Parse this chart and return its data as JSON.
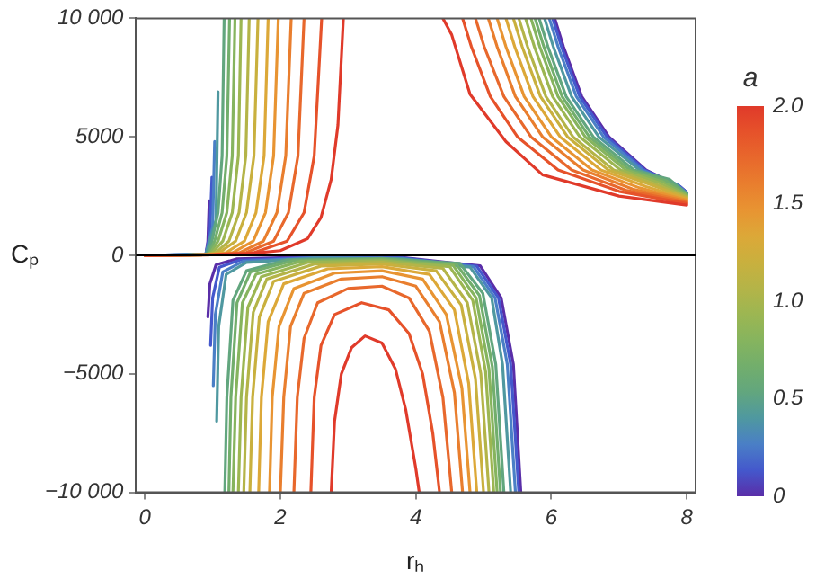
{
  "chart_data": {
    "type": "line",
    "xlabel": "rₕ",
    "ylabel": "Cₚ",
    "clabel": "a",
    "clim": [
      0,
      2
    ],
    "cticks": [
      0,
      {
        "value": 0.5,
        "label": "0.5"
      },
      {
        "value": 1,
        "label": "1.0"
      },
      {
        "value": 1.5,
        "label": "1.5"
      },
      {
        "value": 2,
        "label": "2.0"
      }
    ],
    "xlim": [
      -0.13,
      8.13
    ],
    "xticks": [
      0,
      2,
      4,
      6,
      8
    ],
    "ylim": [
      -10000,
      10000
    ],
    "yticks": [
      {
        "value": -10000,
        "label": "−10 000"
      },
      {
        "value": -5000,
        "label": "−5000"
      },
      0,
      5000,
      {
        "value": 10000,
        "label": "10 000"
      }
    ],
    "ref_lines": [
      {
        "axis": "y",
        "value": 0,
        "color": "#000000"
      }
    ],
    "series": [
      {
        "color": "#e03a2a",
        "x": [
          0,
          1,
          1.5,
          2,
          2.4,
          2.6,
          2.75,
          2.85,
          2.93,
          null,
          2.75,
          2.8,
          2.9,
          3.05,
          3.25,
          3.5,
          3.7,
          3.85,
          4.0,
          4.05,
          null,
          4.4,
          4.53,
          4.8,
          5.33,
          5.87,
          7,
          8
        ],
        "values": [
          0,
          20,
          60,
          200,
          700,
          1600,
          3200,
          5500,
          10000,
          null,
          -10000,
          -7000,
          -5000,
          -3900,
          -3400,
          -3700,
          -4800,
          -6500,
          -9000,
          -10000,
          null,
          10000,
          9300,
          6800,
          4800,
          3400,
          2500,
          2120
        ]
      },
      {
        "color": "#e6522a",
        "x": [
          0,
          1,
          1.6,
          2.1,
          2.35,
          2.5,
          2.61,
          null,
          2.45,
          2.5,
          2.6,
          2.8,
          3.2,
          3.6,
          3.9,
          4.1,
          4.25,
          4.35,
          null,
          4.69,
          4.82,
          5.1,
          5.5,
          6.1,
          7,
          8
        ],
        "values": [
          0,
          20,
          100,
          600,
          1800,
          4200,
          10000,
          null,
          -10000,
          -6000,
          -3800,
          -2500,
          -2000,
          -2300,
          -3300,
          -5000,
          -7500,
          -10000,
          null,
          10000,
          8800,
          6700,
          5000,
          3600,
          2700,
          2180
        ]
      },
      {
        "color": "#e8682c",
        "x": [
          0,
          1,
          1.5,
          1.9,
          2.12,
          2.26,
          2.35,
          null,
          2.2,
          2.25,
          2.35,
          2.55,
          3.0,
          3.5,
          3.9,
          4.2,
          4.4,
          4.53,
          null,
          4.88,
          5.01,
          5.3,
          5.7,
          6.3,
          7.1,
          8
        ],
        "values": [
          0,
          20,
          120,
          600,
          1800,
          4200,
          10000,
          null,
          -10000,
          -6000,
          -3500,
          -2000,
          -1400,
          -1300,
          -1800,
          -3200,
          -6000,
          -10000,
          null,
          10000,
          8800,
          6700,
          5000,
          3600,
          2750,
          2230
        ]
      },
      {
        "color": "#e97e2e",
        "x": [
          0,
          1,
          1.4,
          1.75,
          1.95,
          2.08,
          2.16,
          null,
          2.0,
          2.05,
          2.15,
          2.35,
          2.9,
          3.5,
          4.0,
          4.35,
          4.57,
          4.69,
          null,
          5.07,
          5.2,
          5.47,
          5.87,
          6.47,
          7.2,
          8
        ],
        "values": [
          0,
          20,
          120,
          600,
          1800,
          4200,
          10000,
          null,
          -10000,
          -6000,
          -3000,
          -1600,
          -1000,
          -900,
          -1300,
          -2800,
          -5800,
          -10000,
          null,
          10000,
          8800,
          6700,
          5000,
          3600,
          2800,
          2280
        ]
      },
      {
        "color": "#e89432",
        "x": [
          0,
          1,
          1.3,
          1.6,
          1.78,
          1.9,
          1.97,
          null,
          1.84,
          1.88,
          1.98,
          2.2,
          2.8,
          3.5,
          4.1,
          4.45,
          4.68,
          4.8,
          null,
          5.2,
          5.33,
          5.6,
          6.0,
          6.6,
          7.3,
          8
        ],
        "values": [
          0,
          20,
          120,
          600,
          1800,
          4200,
          10000,
          null,
          -10000,
          -6000,
          -3000,
          -1400,
          -750,
          -650,
          -1000,
          -2500,
          -5600,
          -10000,
          null,
          10000,
          8800,
          6700,
          5000,
          3600,
          2850,
          2330
        ]
      },
      {
        "color": "#dca838",
        "x": [
          0,
          0.9,
          1.2,
          1.47,
          1.64,
          1.76,
          1.82,
          null,
          1.68,
          1.72,
          1.82,
          2.05,
          2.7,
          3.5,
          4.2,
          4.57,
          4.78,
          4.9,
          null,
          5.33,
          5.46,
          5.73,
          6.13,
          6.73,
          7.4,
          8
        ],
        "values": [
          0,
          20,
          120,
          600,
          1800,
          4200,
          10000,
          null,
          -10000,
          -6000,
          -2800,
          -1200,
          -570,
          -480,
          -800,
          -2300,
          -5400,
          -10000,
          null,
          10000,
          8800,
          6700,
          5000,
          3600,
          2900,
          2380
        ]
      },
      {
        "color": "#c9b03e",
        "x": [
          0,
          0.9,
          1.1,
          1.34,
          1.5,
          1.61,
          1.67,
          null,
          1.55,
          1.59,
          1.69,
          1.9,
          2.6,
          3.5,
          4.3,
          4.67,
          4.88,
          5.0,
          null,
          5.44,
          5.57,
          5.84,
          6.24,
          6.84,
          7.5,
          8
        ],
        "values": [
          0,
          20,
          120,
          600,
          1800,
          4200,
          10000,
          null,
          -10000,
          -6000,
          -2600,
          -1100,
          -450,
          -370,
          -650,
          -2100,
          -5200,
          -10000,
          null,
          10000,
          8800,
          6700,
          5000,
          3600,
          2950,
          2420
        ]
      },
      {
        "color": "#b4b448",
        "x": [
          0,
          0.9,
          1.05,
          1.24,
          1.39,
          1.49,
          1.54,
          null,
          1.46,
          1.5,
          1.6,
          1.8,
          2.5,
          3.5,
          4.4,
          4.76,
          4.96,
          5.08,
          null,
          5.52,
          5.65,
          5.92,
          6.32,
          6.92,
          7.55,
          8
        ],
        "values": [
          0,
          20,
          120,
          600,
          1800,
          4200,
          10000,
          null,
          -10000,
          -6000,
          -2400,
          -1000,
          -370,
          -290,
          -550,
          -2000,
          -5000,
          -10000,
          null,
          10000,
          8800,
          6700,
          5000,
          3600,
          3000,
          2460
        ]
      },
      {
        "color": "#9cb652",
        "x": [
          0,
          0.9,
          1.0,
          1.15,
          1.29,
          1.38,
          1.42,
          null,
          1.38,
          1.42,
          1.52,
          1.72,
          2.4,
          3.5,
          4.5,
          4.84,
          5.03,
          5.15,
          null,
          5.62,
          5.75,
          6.02,
          6.42,
          7.02,
          7.6,
          8
        ],
        "values": [
          0,
          20,
          120,
          600,
          1800,
          4200,
          10000,
          null,
          -10000,
          -6000,
          -2200,
          -900,
          -300,
          -230,
          -480,
          -1900,
          -4900,
          -10000,
          null,
          10000,
          8800,
          6700,
          5000,
          3600,
          3050,
          2500
        ]
      },
      {
        "color": "#86b45e",
        "x": [
          0,
          0.9,
          0.97,
          1.08,
          1.21,
          1.29,
          1.33,
          null,
          1.3,
          1.34,
          1.44,
          1.64,
          2.3,
          3.5,
          4.55,
          4.89,
          5.08,
          5.2,
          null,
          5.7,
          5.83,
          6.1,
          6.5,
          7.1,
          7.65,
          8
        ],
        "values": [
          0,
          20,
          120,
          600,
          1800,
          4200,
          10000,
          null,
          -10000,
          -6000,
          -2000,
          -800,
          -250,
          -190,
          -420,
          -1800,
          -4800,
          -10000,
          null,
          10000,
          8800,
          6700,
          5000,
          3600,
          3100,
          2540
        ]
      },
      {
        "color": "#72ae6c",
        "x": [
          0,
          0.9,
          0.95,
          1.03,
          1.14,
          1.21,
          1.25,
          null,
          1.24,
          1.27,
          1.36,
          1.56,
          2.2,
          3.5,
          4.6,
          4.94,
          5.13,
          5.25,
          null,
          5.76,
          5.89,
          6.16,
          6.56,
          7.16,
          7.7,
          8
        ],
        "values": [
          0,
          20,
          120,
          600,
          1800,
          4200,
          10000,
          null,
          -10000,
          -6000,
          -2000,
          -700,
          -220,
          -160,
          -380,
          -1700,
          -4700,
          -10000,
          null,
          10000,
          8800,
          6700,
          5000,
          3600,
          3150,
          2570
        ]
      },
      {
        "color": "#62a67e",
        "x": [
          0,
          0.9,
          0.93,
          0.99,
          1.08,
          1.14,
          1.17,
          null,
          1.18,
          1.21,
          1.3,
          1.5,
          2.1,
          3.5,
          4.65,
          4.99,
          5.18,
          5.3,
          null,
          5.82,
          5.95,
          6.22,
          6.62,
          7.22,
          7.75,
          8
        ],
        "values": [
          0,
          20,
          120,
          600,
          1800,
          4200,
          10000,
          null,
          -10000,
          -6000,
          -1900,
          -650,
          -190,
          -130,
          -340,
          -1600,
          -4600,
          -10000,
          null,
          10000,
          8800,
          6700,
          5000,
          3600,
          3200,
          2600
        ]
      },
      {
        "color": "#4f98a0",
        "x": [
          0,
          0.9,
          1.05,
          1.08,
          null,
          1.06,
          1.09,
          1.2,
          1.5,
          2.5,
          3.8,
          4.8,
          5.12,
          5.28,
          5.4,
          null,
          5.9,
          6.03,
          6.3,
          6.7,
          7.3,
          7.8,
          8
        ],
        "values": [
          0,
          50,
          1500,
          6900,
          null,
          -7000,
          -3000,
          -800,
          -300,
          -120,
          -150,
          -500,
          -1800,
          -4600,
          -10000,
          null,
          10000,
          8800,
          6700,
          5000,
          3600,
          3000,
          2620
        ]
      },
      {
        "color": "#4a7fc6",
        "x": [
          0,
          0.9,
          1.0,
          1.03,
          null,
          1.01,
          1.04,
          1.15,
          1.45,
          2.5,
          3.8,
          4.85,
          5.17,
          5.35,
          5.47,
          null,
          5.97,
          6.1,
          6.37,
          6.77,
          7.35,
          7.85,
          8
        ],
        "values": [
          0,
          50,
          1200,
          4800,
          null,
          -5500,
          -2500,
          -700,
          -250,
          -100,
          -130,
          -480,
          -1800,
          -4600,
          -10000,
          null,
          10000,
          8800,
          6700,
          5000,
          3600,
          3000,
          2640
        ]
      },
      {
        "color": "#4458cc",
        "x": [
          0,
          0.9,
          0.96,
          0.99,
          null,
          0.97,
          1.0,
          1.1,
          1.4,
          2.5,
          3.8,
          4.9,
          5.22,
          5.4,
          5.52,
          null,
          6.02,
          6.15,
          6.42,
          6.82,
          7.38,
          7.88,
          8
        ],
        "values": [
          0,
          50,
          900,
          3300,
          null,
          -3800,
          -1800,
          -500,
          -200,
          -80,
          -110,
          -460,
          -1800,
          -4600,
          -10000,
          null,
          10000,
          8800,
          6700,
          5000,
          3600,
          2950,
          2650
        ]
      },
      {
        "color": "#5a2ea8",
        "x": [
          0,
          0.9,
          0.93,
          0.95,
          null,
          0.93,
          0.96,
          1.05,
          1.35,
          2.5,
          3.8,
          4.95,
          5.26,
          5.44,
          5.55,
          null,
          6.05,
          6.18,
          6.45,
          6.85,
          7.4,
          7.9,
          8
        ],
        "values": [
          0,
          40,
          600,
          2300,
          null,
          -2600,
          -1200,
          -400,
          -150,
          -60,
          -90,
          -440,
          -1800,
          -4600,
          -10000,
          null,
          10000,
          8800,
          6700,
          5000,
          3600,
          2900,
          2660
        ]
      }
    ]
  }
}
